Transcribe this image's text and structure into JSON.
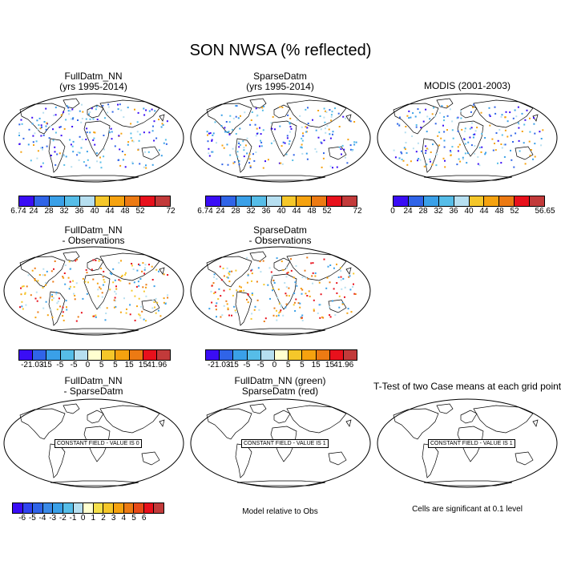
{
  "page_title": "SON NWSA (% reflected)",
  "panels": [
    {
      "id": "p1",
      "title": "FullDatm_NN\n(yrs 1995-2014)",
      "kind": "obs-dots"
    },
    {
      "id": "p2",
      "title": "SparseDatm\n(yrs 1995-2014)",
      "kind": "obs-dots"
    },
    {
      "id": "p3",
      "title": "MODIS (2001-2003)",
      "kind": "obs-dots"
    },
    {
      "id": "p4",
      "title": "FullDatm_NN\n- Observations",
      "kind": "diff-dots"
    },
    {
      "id": "p5",
      "title": "SparseDatm\n- Observations",
      "kind": "diff-dots"
    },
    {
      "id": "p7",
      "title": "FullDatm_NN\n- SparseDatm",
      "kind": "constant",
      "constant_label": "CONSTANT FIELD - VALUE IS 0"
    },
    {
      "id": "p8",
      "title": "FullDatm_NN (green)\nSparseDatm (red)",
      "kind": "constant",
      "constant_label": "CONSTANT FIELD - VALUE IS 1"
    },
    {
      "id": "p9",
      "title": "T-Test of two Case means at each grid point",
      "kind": "constant",
      "constant_label": "CONSTANT FIELD - VALUE IS 1"
    }
  ],
  "colorbars": {
    "obs1": {
      "colors": [
        "#3a0df5",
        "#3064e8",
        "#3aa0e8",
        "#56bde8",
        "#b6dff0",
        "#f5c72a",
        "#f5a20f",
        "#ec7a13",
        "#e8111c",
        "#c23a3a"
      ],
      "ticks": [
        "6.74",
        "24",
        "28",
        "32",
        "36",
        "40",
        "44",
        "48",
        "52",
        "72"
      ]
    },
    "obs2": {
      "colors": [
        "#3a0df5",
        "#3064e8",
        "#3aa0e8",
        "#56bde8",
        "#b6dff0",
        "#f5c72a",
        "#f5a20f",
        "#ec7a13",
        "#e8111c",
        "#c23a3a"
      ],
      "ticks": [
        "6.74",
        "24",
        "28",
        "32",
        "36",
        "40",
        "44",
        "48",
        "52",
        "72"
      ]
    },
    "obs3": {
      "colors": [
        "#3a0df5",
        "#3064e8",
        "#3aa0e8",
        "#56bde8",
        "#b6dff0",
        "#f5c72a",
        "#f5a20f",
        "#ec7a13",
        "#e8111c",
        "#c23a3a"
      ],
      "ticks": [
        "0",
        "24",
        "28",
        "32",
        "36",
        "40",
        "44",
        "48",
        "52",
        "56.65"
      ]
    },
    "diff1": {
      "colors": [
        "#3a0df5",
        "#3064e8",
        "#3aa0e8",
        "#56bde8",
        "#b6dff0",
        "#ffffd0",
        "#f5c72a",
        "#f5a20f",
        "#ec7a13",
        "#e8111c",
        "#c23a3a"
      ],
      "ticks": [
        "-21.03",
        "-15",
        "-5",
        "-5",
        "0",
        "5",
        "5",
        "15",
        "15",
        "41.96"
      ]
    },
    "diff2": {
      "colors": [
        "#3a0df5",
        "#3064e8",
        "#3aa0e8",
        "#56bde8",
        "#b6dff0",
        "#ffffd0",
        "#f5c72a",
        "#f5a20f",
        "#ec7a13",
        "#e8111c",
        "#c23a3a"
      ],
      "ticks": [
        "-21.03",
        "-15",
        "-5",
        "-5",
        "0",
        "5",
        "5",
        "15",
        "15",
        "41.96"
      ]
    },
    "mm": {
      "colors": [
        "#3a0df5",
        "#3044f0",
        "#3064e8",
        "#3a8ae8",
        "#3aa0e8",
        "#56bde8",
        "#b6dff0",
        "#ffffd0",
        "#f5e04a",
        "#f5c72a",
        "#f5a20f",
        "#ec7a13",
        "#e84a18",
        "#e8111c",
        "#c23a3a"
      ],
      "ticks": [
        "-6",
        "-5",
        "-4",
        "-3",
        "-2",
        "-1",
        "0",
        "1",
        "2",
        "3",
        "4",
        "5",
        "6"
      ]
    }
  },
  "notes": {
    "model_rel": "Model relative to Obs",
    "cells_sig": "Cells are significant at 0.1 level"
  },
  "chart_data": {
    "type": "heatmap",
    "title": "SON NWSA (% reflected)",
    "variable": "NWSA",
    "season": "SON",
    "units": "% reflected",
    "obs_range_full": [
      6.74,
      72
    ],
    "obs_range_sparse": [
      6.74,
      72
    ],
    "obs_range_modis": [
      0,
      56.65
    ],
    "diff_range": [
      -21.03,
      41.96
    ],
    "model_model_levels": [
      -6,
      -5,
      -4,
      -3,
      -2,
      -1,
      0,
      1,
      2,
      3,
      4,
      5,
      6
    ],
    "constant_fields": {
      "FullDatm_NN - SparseDatm": 0,
      "green/red": 1,
      "T-Test": 1
    }
  }
}
